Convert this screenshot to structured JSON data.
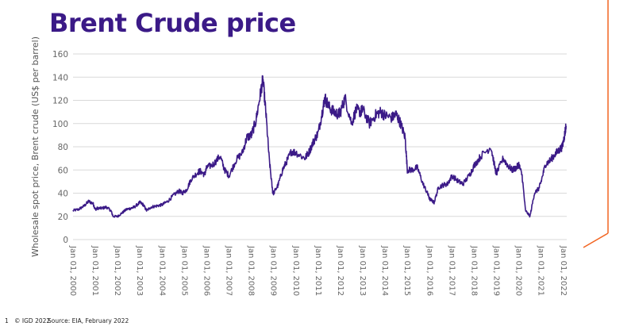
{
  "slide": {
    "title": "Brent Crude price",
    "page_number": "1",
    "copyright": "© IGD 2022",
    "source": "Source: EIA, February 2022"
  },
  "colors": {
    "title": "#3b1a87",
    "line": "#3b1a87",
    "accent": "#f26522",
    "grid": "#d9d9d9",
    "tick_text": "#666666"
  },
  "chart_data": {
    "type": "line",
    "title": "Brent Crude price",
    "xlabel": "",
    "ylabel": "Wholesale spot price, Brent crude (US$ per barrel)",
    "ylim": [
      0,
      160
    ],
    "xlim": [
      2000.0,
      2022.15
    ],
    "grid": true,
    "legend": "none",
    "y_ticks": [
      0,
      20,
      40,
      60,
      80,
      100,
      120,
      140,
      160
    ],
    "x_tick_labels": [
      "Jan 01, 2000",
      "Jan 01, 2001",
      "Jan 01, 2002",
      "Jan 01, 2003",
      "Jan 01, 2004",
      "Jan 01, 2005",
      "Jan 01, 2006",
      "Jan 01, 2007",
      "Jan 01, 2008",
      "Jan 01, 2009",
      "Jan 01, 2010",
      "Jan 01, 2011",
      "Jan 01, 2012",
      "Jan 01, 2013",
      "Jan 01, 2014",
      "Jan 01, 2015",
      "Jan 01, 2016",
      "Jan 01, 2017",
      "Jan 01, 2018",
      "Jan 01, 2019",
      "Jan 01, 2020",
      "Jan 01, 2021",
      "Jan 01, 2022"
    ],
    "series": [
      {
        "name": "Brent crude",
        "x": [
          2000.0,
          2000.25,
          2000.5,
          2000.7,
          2000.9,
          2001.0,
          2001.1,
          2001.3,
          2001.5,
          2001.7,
          2001.8,
          2002.0,
          2002.2,
          2002.4,
          2002.6,
          2002.75,
          2003.0,
          2003.15,
          2003.3,
          2003.5,
          2003.75,
          2004.0,
          2004.25,
          2004.5,
          2004.75,
          2004.9,
          2005.1,
          2005.3,
          2005.6,
          2005.7,
          2005.9,
          2006.0,
          2006.3,
          2006.6,
          2006.8,
          2007.0,
          2007.3,
          2007.6,
          2007.8,
          2008.0,
          2008.2,
          2008.4,
          2008.52,
          2008.65,
          2008.8,
          2008.95,
          2009.0,
          2009.2,
          2009.4,
          2009.6,
          2009.8,
          2010.0,
          2010.4,
          2010.6,
          2010.8,
          2011.0,
          2011.2,
          2011.3,
          2011.5,
          2011.7,
          2011.9,
          2012.0,
          2012.2,
          2012.5,
          2012.7,
          2012.9,
          2013.0,
          2013.3,
          2013.6,
          2013.8,
          2014.0,
          2014.3,
          2014.5,
          2014.7,
          2014.9,
          2015.0,
          2015.2,
          2015.45,
          2015.7,
          2015.9,
          2016.0,
          2016.2,
          2016.4,
          2016.6,
          2016.8,
          2017.0,
          2017.3,
          2017.5,
          2017.8,
          2018.0,
          2018.3,
          2018.75,
          2018.95,
          2019.0,
          2019.3,
          2019.5,
          2019.7,
          2019.9,
          2020.0,
          2020.15,
          2020.3,
          2020.5,
          2020.7,
          2020.9,
          2021.0,
          2021.2,
          2021.4,
          2021.6,
          2021.8,
          2021.95,
          2022.05,
          2022.12
        ],
        "values": [
          25,
          26,
          29,
          33,
          31,
          26,
          27,
          27,
          28,
          25,
          20,
          20,
          23,
          26,
          27,
          28,
          32,
          30,
          25,
          28,
          29,
          30,
          33,
          38,
          42,
          40,
          43,
          52,
          58,
          59,
          56,
          62,
          65,
          72,
          60,
          55,
          68,
          75,
          88,
          90,
          102,
          125,
          138,
          110,
          70,
          42,
          40,
          47,
          60,
          68,
          76,
          75,
          70,
          76,
          85,
          92,
          112,
          122,
          114,
          110,
          108,
          110,
          122,
          100,
          112,
          110,
          112,
          100,
          108,
          110,
          107,
          105,
          108,
          100,
          88,
          60,
          60,
          62,
          48,
          40,
          35,
          32,
          45,
          47,
          48,
          55,
          50,
          48,
          56,
          64,
          72,
          80,
          60,
          57,
          70,
          64,
          60,
          62,
          65,
          55,
          25,
          20,
          40,
          44,
          50,
          65,
          68,
          73,
          77,
          80,
          90,
          98
        ]
      }
    ]
  }
}
